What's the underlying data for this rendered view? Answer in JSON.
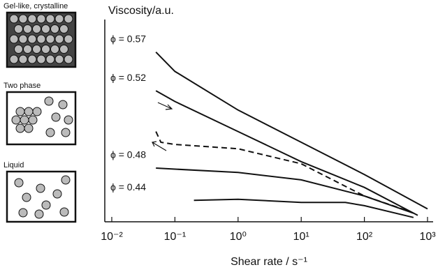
{
  "chart_data": {
    "type": "line",
    "title": "Viscosity/a.u.",
    "x_label": "Shear rate / s⁻¹",
    "xscale": "log",
    "xlim": [
      0.01,
      1000
    ],
    "xticks": [
      {
        "value": 0.01,
        "label": "10⁻²"
      },
      {
        "value": 0.1,
        "label": "10⁻¹"
      },
      {
        "value": 1,
        "label": "10⁰"
      },
      {
        "value": 10,
        "label": "10¹"
      },
      {
        "value": 100,
        "label": "10²"
      },
      {
        "value": 1000,
        "label": "10³"
      }
    ],
    "ylim": [
      0,
      100
    ],
    "series": [
      {
        "name": "ϕ = 0.57",
        "color": "#111111",
        "dash": false,
        "x": [
          0.05,
          0.1,
          1,
          10,
          100,
          1000
        ],
        "values": [
          79,
          70,
          52,
          37,
          22,
          6
        ]
      },
      {
        "name": "ϕ = 0.52",
        "color": "#111111",
        "dash": false,
        "x": [
          0.05,
          0.1,
          1,
          10,
          100,
          700
        ],
        "values": [
          61,
          56,
          42,
          28,
          16,
          3
        ]
      },
      {
        "name": "ϕ = 0.48",
        "color": "#111111",
        "dash": false,
        "x": [
          0.05,
          0.1,
          1,
          10,
          100,
          600
        ],
        "values": [
          25,
          24.5,
          23,
          19.5,
          12,
          4
        ]
      },
      {
        "name": "ϕ = 0.44",
        "color": "#111111",
        "dash": false,
        "x": [
          0.2,
          1,
          10,
          50,
          100,
          600
        ],
        "values": [
          10,
          10.5,
          9,
          9,
          7.5,
          2
        ]
      },
      {
        "color": "#111111",
        "dash": true,
        "x": [
          0.05,
          0.06,
          0.1,
          1,
          10,
          100,
          500
        ],
        "values": [
          42,
          37,
          36,
          34,
          27,
          12,
          5
        ]
      }
    ]
  },
  "panels": [
    "Gel-like, crystalline",
    "Two phase",
    "Liquid"
  ]
}
